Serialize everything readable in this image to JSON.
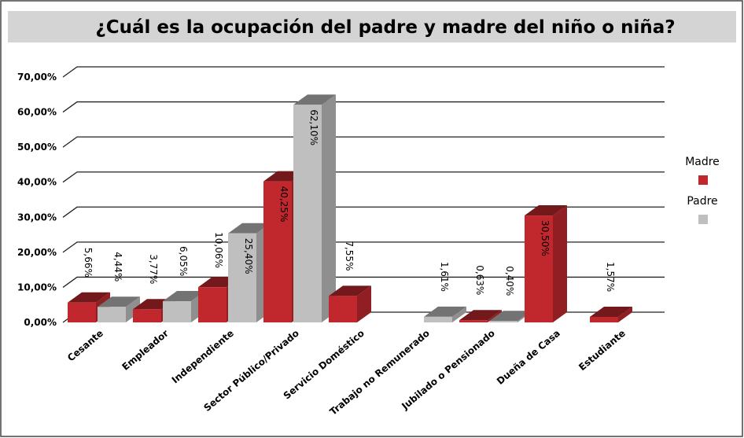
{
  "chart_data": {
    "type": "bar3d",
    "title": "¿Cuál es la ocupación del padre y madre del niño o niña?",
    "categories": [
      "Cesante",
      "Empleador",
      "Independiente",
      "Sector Público/Privado",
      "Servicio Doméstico",
      "Trabajo no Remunerado",
      "Jubilado o Pensionado",
      "Dueña de Casa",
      "Estudiante"
    ],
    "series": [
      {
        "name": "Madre",
        "color": "#c0282d",
        "values": [
          5.66,
          3.77,
          10.06,
          40.25,
          7.55,
          null,
          0.63,
          30.5,
          1.57
        ],
        "value_labels": [
          "5,66%",
          "3,77%",
          "10,06%",
          "40,25%",
          "7,55%",
          null,
          "0,63%",
          "30,50%",
          "1,57%"
        ]
      },
      {
        "name": "Padre",
        "color": "#bfbfbf",
        "values": [
          4.44,
          6.05,
          25.4,
          62.1,
          null,
          1.61,
          0.4,
          null,
          null
        ],
        "value_labels": [
          "4,44%",
          "6,05%",
          "25,40%",
          "62,10%",
          null,
          "1,61%",
          "0,40%",
          null,
          null
        ]
      }
    ],
    "ylim": [
      0,
      70
    ],
    "yticks": [
      {
        "value": 0,
        "label": "0,00%"
      },
      {
        "value": 10,
        "label": "10,00%"
      },
      {
        "value": 20,
        "label": "20,00%"
      },
      {
        "value": 30,
        "label": "30,00%"
      },
      {
        "value": 40,
        "label": "40,00%"
      },
      {
        "value": 50,
        "label": "50,00%"
      },
      {
        "value": 60,
        "label": "60,00%"
      },
      {
        "value": 70,
        "label": "70,00%"
      }
    ],
    "grid": true,
    "legend": "right"
  }
}
